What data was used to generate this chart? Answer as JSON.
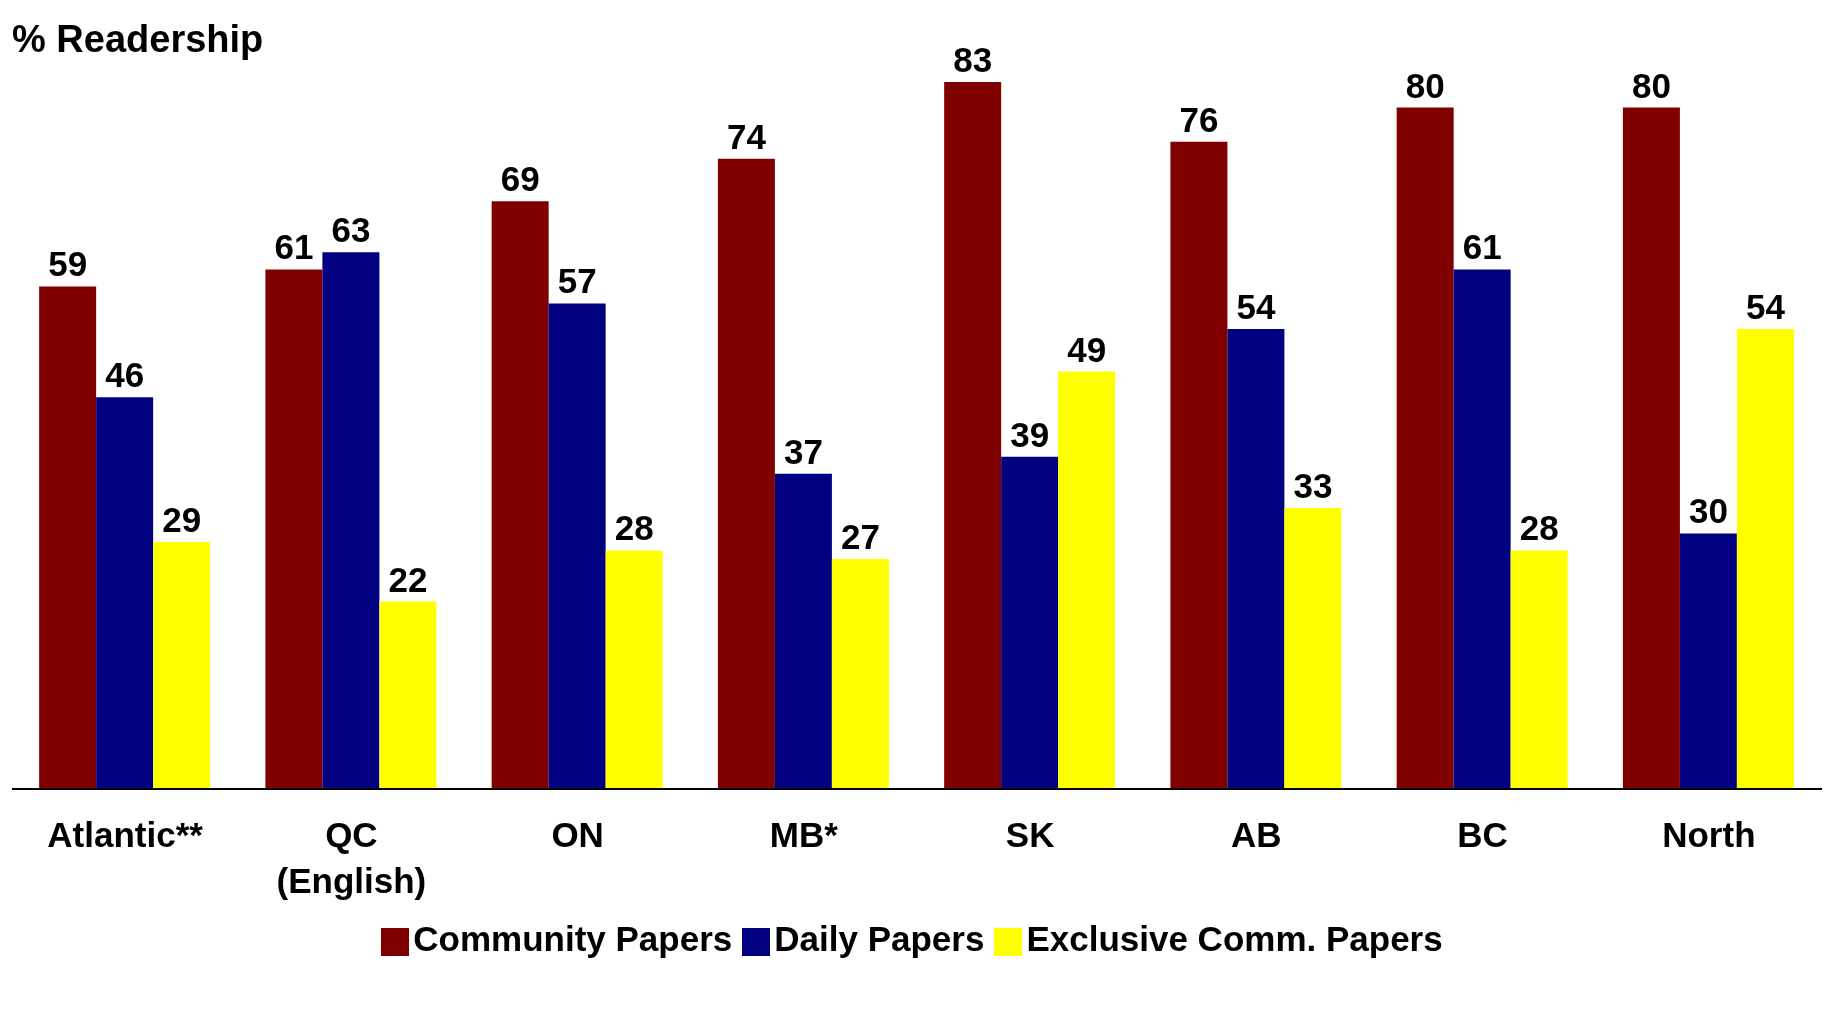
{
  "chart_data": {
    "type": "bar",
    "title": "% Readership",
    "categories": [
      "Atlantic**",
      "QC (English)",
      "ON",
      "MB*",
      "SK",
      "AB",
      "BC",
      "North"
    ],
    "series": [
      {
        "name": "Community Papers",
        "color": "#800000",
        "values": [
          59,
          61,
          69,
          74,
          83,
          76,
          80,
          80
        ]
      },
      {
        "name": "Daily Papers",
        "color": "#000080",
        "values": [
          46,
          63,
          57,
          37,
          39,
          54,
          61,
          30
        ]
      },
      {
        "name": "Exclusive Comm. Papers",
        "color": "#ffff00",
        "values": [
          29,
          22,
          28,
          27,
          49,
          33,
          28,
          54
        ]
      }
    ],
    "data_labels": true,
    "legend": "bottom",
    "grid": false
  }
}
